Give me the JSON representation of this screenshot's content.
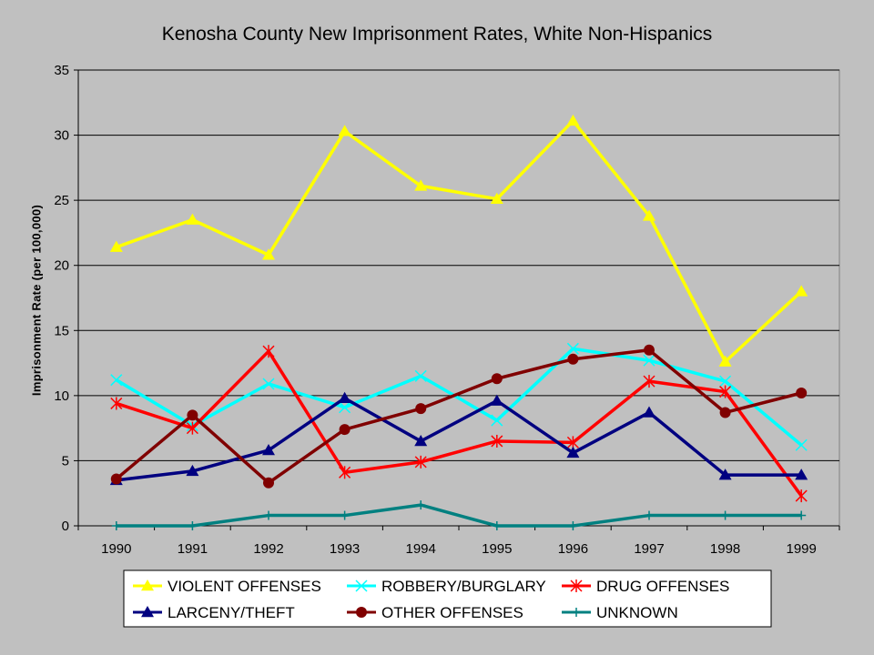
{
  "chart_data": {
    "type": "line",
    "title": "Kenosha County New Imprisonment Rates, White Non-Hispanics",
    "xlabel": "",
    "ylabel": "Imprisonment Rate (per 100,000)",
    "categories": [
      "1990",
      "1991",
      "1992",
      "1993",
      "1994",
      "1995",
      "1996",
      "1997",
      "1998",
      "1999"
    ],
    "ylim": [
      0,
      35
    ],
    "yticks": [
      "0",
      "5",
      "10",
      "15",
      "20",
      "25",
      "30",
      "35"
    ],
    "grid": "horizontal",
    "legend_position": "bottom",
    "series": [
      {
        "name": "VIOLENT OFFENSES",
        "color": "#ffff00",
        "marker": "triangle",
        "values": [
          21.4,
          23.5,
          20.8,
          30.3,
          26.1,
          25.1,
          31.1,
          23.8,
          12.6,
          18.0
        ]
      },
      {
        "name": "ROBBERY/BURGLARY",
        "color": "#00ffff",
        "marker": "x",
        "values": [
          11.2,
          7.7,
          10.9,
          9.1,
          11.5,
          8.1,
          13.6,
          12.7,
          11.1,
          6.2
        ]
      },
      {
        "name": "DRUG OFFENSES",
        "color": "#ff0000",
        "marker": "star",
        "values": [
          9.4,
          7.5,
          13.4,
          4.1,
          4.9,
          6.5,
          6.4,
          11.1,
          10.3,
          2.3
        ]
      },
      {
        "name": "LARCENY/THEFT",
        "color": "#000080",
        "marker": "triangle",
        "values": [
          3.5,
          4.2,
          5.8,
          9.8,
          6.5,
          9.6,
          5.6,
          8.7,
          3.9,
          3.9
        ]
      },
      {
        "name": "OTHER OFFENSES",
        "color": "#800000",
        "marker": "circle",
        "values": [
          3.6,
          8.5,
          3.3,
          7.4,
          9.0,
          11.3,
          12.8,
          13.5,
          8.7,
          10.2
        ]
      },
      {
        "name": "UNKNOWN",
        "color": "#008080",
        "marker": "plus",
        "values": [
          0,
          0,
          0.8,
          0.8,
          1.6,
          0,
          0,
          0.8,
          0.8,
          0.8
        ]
      }
    ]
  }
}
